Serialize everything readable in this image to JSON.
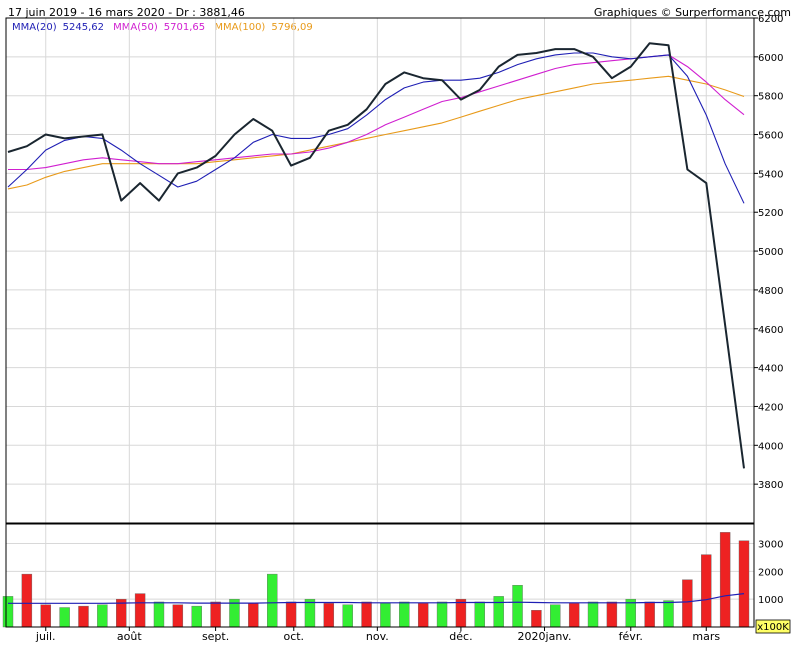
{
  "header": {
    "range": "17 juin 2019 - 16 mars 2020 - Dr : 3881,46",
    "credit": "Graphiques © Surperformance.com"
  },
  "legend": [
    {
      "label": "MMA(20)",
      "value": "5245,62",
      "color": "#1f1fb4"
    },
    {
      "label": "MMA(50)",
      "value": "5701,65",
      "color": "#d01fd0"
    },
    {
      "label": "MMA(100)",
      "value": "5796,09",
      "color": "#e89a1a"
    }
  ],
  "volume_unit": "x100K",
  "chart_data": [
    {
      "type": "line",
      "title": "",
      "x": [
        "2019-06-17",
        "2019-06-24",
        "2019-07-01",
        "2019-07-08",
        "2019-07-15",
        "2019-07-22",
        "2019-07-29",
        "2019-08-05",
        "2019-08-12",
        "2019-08-19",
        "2019-08-26",
        "2019-09-02",
        "2019-09-09",
        "2019-09-16",
        "2019-09-23",
        "2019-09-30",
        "2019-10-07",
        "2019-10-14",
        "2019-10-21",
        "2019-10-28",
        "2019-11-04",
        "2019-11-11",
        "2019-11-18",
        "2019-11-25",
        "2019-12-02",
        "2019-12-09",
        "2019-12-16",
        "2019-12-23",
        "2019-12-30",
        "2020-01-06",
        "2020-01-13",
        "2020-01-20",
        "2020-01-27",
        "2020-02-03",
        "2020-02-10",
        "2020-02-17",
        "2020-02-24",
        "2020-03-02",
        "2020-03-09",
        "2020-03-16"
      ],
      "series": [
        {
          "name": "Cours",
          "color": "#1a2630",
          "values": [
            5510,
            5540,
            5600,
            5580,
            5590,
            5600,
            5260,
            5350,
            5260,
            5400,
            5430,
            5490,
            5600,
            5680,
            5620,
            5440,
            5480,
            5620,
            5650,
            5730,
            5860,
            5920,
            5890,
            5880,
            5780,
            5830,
            5950,
            6010,
            6020,
            6040,
            6040,
            6000,
            5890,
            5950,
            6070,
            6060,
            5420,
            5350,
            4620,
            3881
          ]
        },
        {
          "name": "MMA(20)",
          "color": "#1f1fb4",
          "values": [
            5330,
            5420,
            5520,
            5570,
            5590,
            5580,
            5520,
            5450,
            5390,
            5330,
            5360,
            5420,
            5480,
            5560,
            5600,
            5580,
            5580,
            5600,
            5630,
            5700,
            5780,
            5840,
            5870,
            5880,
            5880,
            5890,
            5920,
            5960,
            5990,
            6010,
            6020,
            6020,
            6000,
            5990,
            6000,
            6010,
            5900,
            5700,
            5450,
            5246
          ]
        },
        {
          "name": "MMA(50)",
          "color": "#d01fd0",
          "values": [
            5420,
            5420,
            5430,
            5450,
            5470,
            5480,
            5470,
            5460,
            5450,
            5450,
            5460,
            5470,
            5480,
            5490,
            5500,
            5500,
            5510,
            5530,
            5560,
            5600,
            5650,
            5690,
            5730,
            5770,
            5790,
            5820,
            5850,
            5880,
            5910,
            5940,
            5960,
            5970,
            5980,
            5990,
            6000,
            6010,
            5950,
            5870,
            5780,
            5702
          ]
        },
        {
          "name": "MMA(100)",
          "color": "#e89a1a",
          "values": [
            5320,
            5340,
            5380,
            5410,
            5430,
            5450,
            5450,
            5450,
            5450,
            5450,
            5450,
            5460,
            5470,
            5480,
            5490,
            5500,
            5520,
            5540,
            5560,
            5580,
            5600,
            5620,
            5640,
            5660,
            5690,
            5720,
            5750,
            5780,
            5800,
            5820,
            5840,
            5860,
            5870,
            5880,
            5890,
            5900,
            5880,
            5860,
            5830,
            5796
          ]
        }
      ],
      "ylim": [
        3600,
        6200
      ],
      "yticks": [
        3800,
        4000,
        4200,
        4400,
        4600,
        4800,
        5000,
        5200,
        5400,
        5600,
        5800,
        6000,
        6200
      ],
      "xticks": [
        {
          "date": "2019-07-01",
          "label": "juil."
        },
        {
          "date": "2019-08-01",
          "label": "août"
        },
        {
          "date": "2019-09-02",
          "label": "sept."
        },
        {
          "date": "2019-10-01",
          "label": "oct."
        },
        {
          "date": "2019-11-01",
          "label": "nov."
        },
        {
          "date": "2019-12-02",
          "label": "déc."
        },
        {
          "date": "2020-01-02",
          "label": "2020janv."
        },
        {
          "date": "2020-02-03",
          "label": "févr."
        },
        {
          "date": "2020-03-02",
          "label": "mars"
        }
      ],
      "grid": true
    },
    {
      "type": "bar",
      "title": "",
      "x": [
        "2019-06-17",
        "2019-06-24",
        "2019-07-01",
        "2019-07-08",
        "2019-07-15",
        "2019-07-22",
        "2019-07-29",
        "2019-08-05",
        "2019-08-12",
        "2019-08-19",
        "2019-08-26",
        "2019-09-02",
        "2019-09-09",
        "2019-09-16",
        "2019-09-23",
        "2019-09-30",
        "2019-10-07",
        "2019-10-14",
        "2019-10-21",
        "2019-10-28",
        "2019-11-04",
        "2019-11-11",
        "2019-11-18",
        "2019-11-25",
        "2019-12-02",
        "2019-12-09",
        "2019-12-16",
        "2019-12-23",
        "2019-12-30",
        "2020-01-06",
        "2020-01-13",
        "2020-01-20",
        "2020-01-27",
        "2020-02-03",
        "2020-02-10",
        "2020-02-17",
        "2020-02-24",
        "2020-03-02",
        "2020-03-09",
        "2020-03-16"
      ],
      "values": [
        1100,
        1900,
        800,
        700,
        750,
        800,
        1000,
        1200,
        900,
        800,
        750,
        900,
        1000,
        850,
        1900,
        900,
        1000,
        850,
        800,
        900,
        850,
        900,
        850,
        900,
        1000,
        900,
        1100,
        1500,
        600,
        800,
        850,
        900,
        900,
        1000,
        900,
        950,
        1700,
        2600,
        3400,
        3100
      ],
      "colors": [
        "green",
        "red",
        "red",
        "green",
        "red",
        "green",
        "red",
        "red",
        "green",
        "red",
        "green",
        "red",
        "green",
        "red",
        "green",
        "red",
        "green",
        "red",
        "green",
        "red",
        "green",
        "green",
        "red",
        "green",
        "red",
        "green",
        "green",
        "green",
        "red",
        "green",
        "red",
        "green",
        "red",
        "green",
        "red",
        "green",
        "red",
        "red",
        "red",
        "red"
      ],
      "avg": [
        850,
        850,
        850,
        850,
        850,
        850,
        860,
        870,
        870,
        870,
        860,
        860,
        860,
        860,
        870,
        880,
        880,
        880,
        880,
        870,
        870,
        870,
        870,
        870,
        880,
        880,
        880,
        890,
        880,
        870,
        870,
        870,
        870,
        870,
        880,
        880,
        900,
        980,
        1120,
        1200
      ],
      "ylim": [
        0,
        3700
      ],
      "yticks": [
        1000,
        2000,
        3000
      ],
      "unit": "x100K",
      "grid": true
    }
  ]
}
